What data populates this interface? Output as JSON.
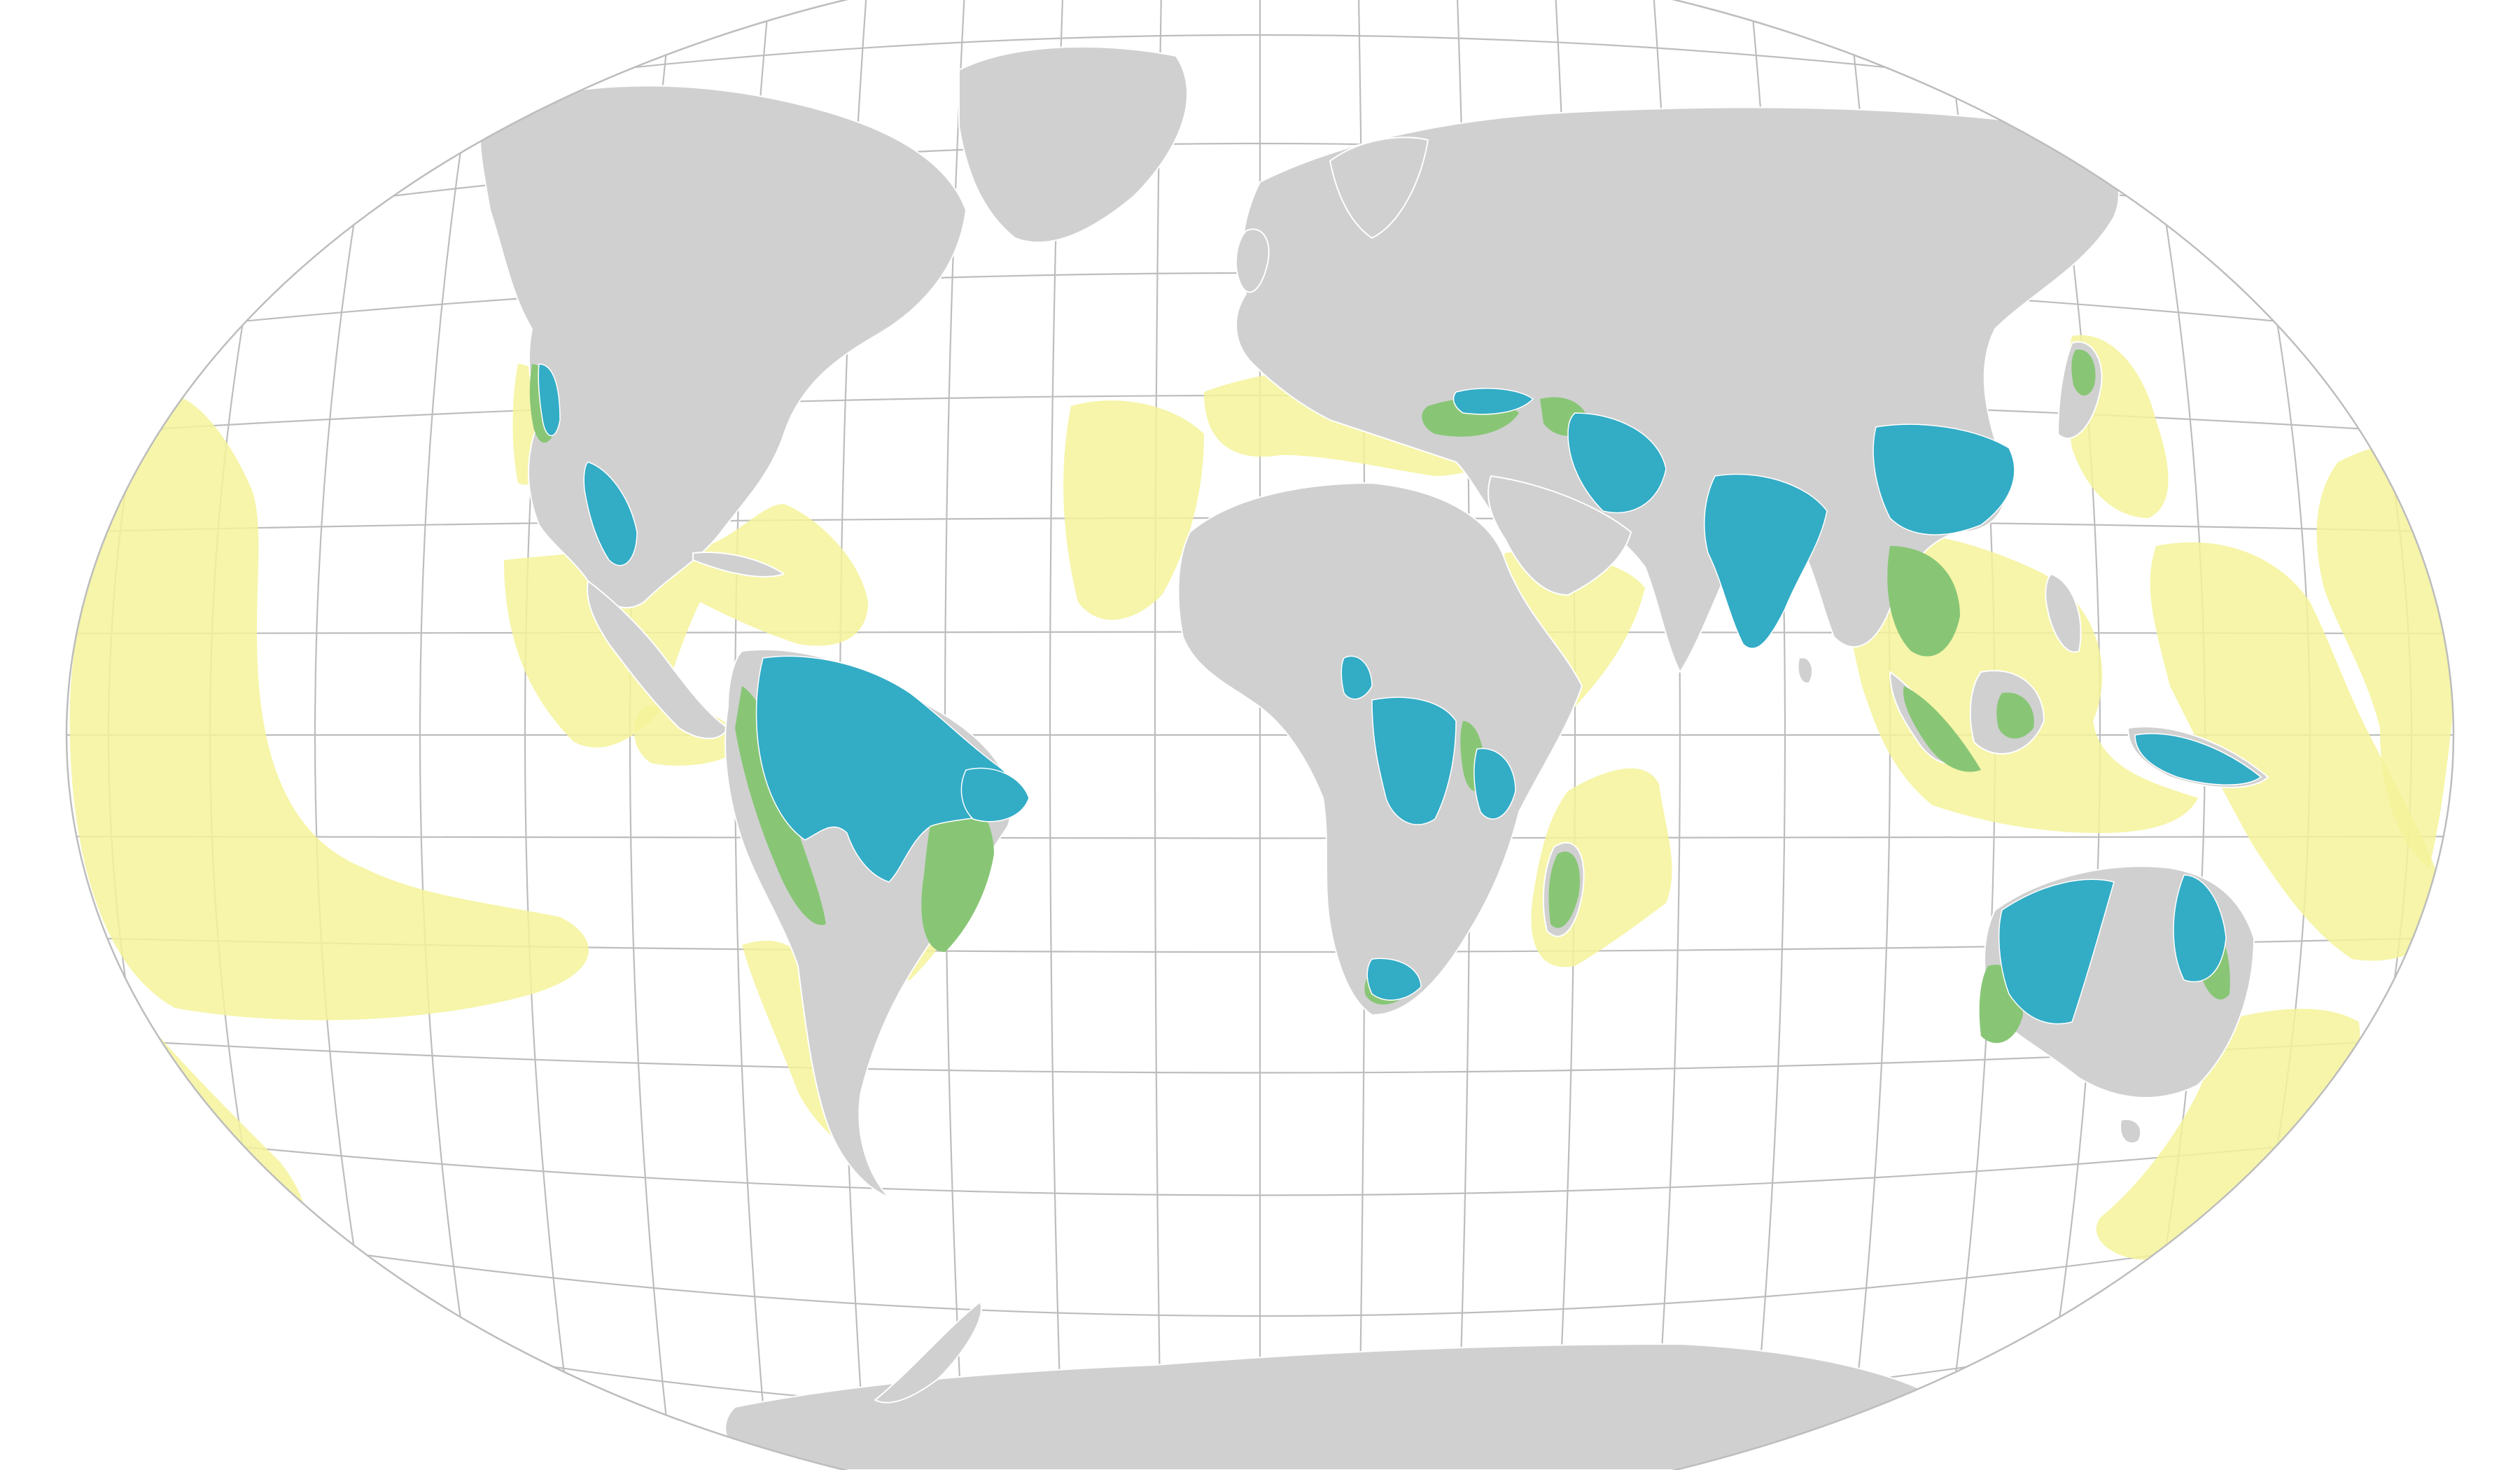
{
  "map": {
    "projection": "winkel-tripel",
    "graticule": "on",
    "labels": [],
    "colors": {
      "background": "#ffffff",
      "graticule": "#bdbdbd",
      "land": "#d0d0d0",
      "borders": "#ffffff",
      "zone_outer": "#f5f39a",
      "zone_mid": "#88c676",
      "zone_core": "#33acc6"
    }
  }
}
